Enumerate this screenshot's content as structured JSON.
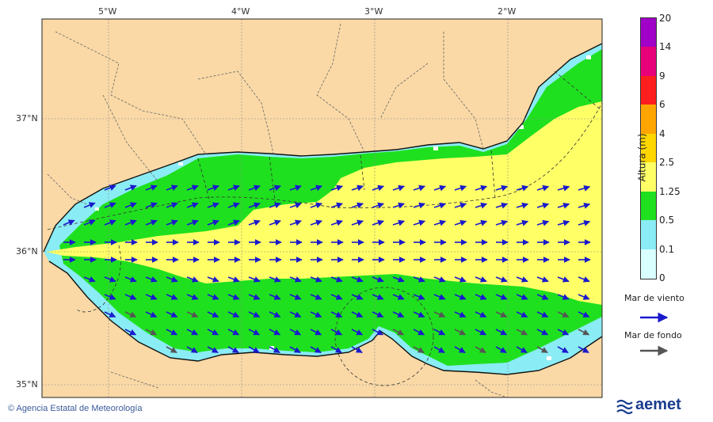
{
  "map": {
    "lon_labels": [
      "5°W",
      "4°W",
      "3°W",
      "2°W"
    ],
    "lat_labels": [
      "37°N",
      "36°N",
      "35°N"
    ],
    "colors": {
      "land": "#fad9a6",
      "sea_low": "#d9ffff",
      "sea_0_1": "#8aecf4",
      "sea_0_5": "#1fe01f",
      "sea_1_25": "#ffff66",
      "wind_arrow": "#1a1acc",
      "swell_arrow": "#555555"
    }
  },
  "colorbar": {
    "title": "Altura (m)",
    "ticks": [
      "20",
      "14",
      "9",
      "6",
      "4",
      "2.5",
      "1.25",
      "0.5",
      "0.1",
      "0"
    ],
    "bands": [
      {
        "from": "14",
        "to": "20",
        "color": "#a000c8"
      },
      {
        "from": "9",
        "to": "14",
        "color": "#e8007a"
      },
      {
        "from": "6",
        "to": "9",
        "color": "#ff1e1e"
      },
      {
        "from": "4",
        "to": "6",
        "color": "#ffa500"
      },
      {
        "from": "2.5",
        "to": "4",
        "color": "#ffd700"
      },
      {
        "from": "1.25",
        "to": "2.5",
        "color": "#ffff66"
      },
      {
        "from": "0.5",
        "to": "1.25",
        "color": "#1fe01f"
      },
      {
        "from": "0.1",
        "to": "0.5",
        "color": "#8aecf4"
      },
      {
        "from": "0",
        "to": "0.1",
        "color": "#d9ffff"
      }
    ]
  },
  "legend": {
    "wind": "Mar de viento",
    "swell": "Mar de fondo"
  },
  "footer": {
    "credit": "© Agencia Estatal de Meteorología",
    "brand": "aemet"
  }
}
